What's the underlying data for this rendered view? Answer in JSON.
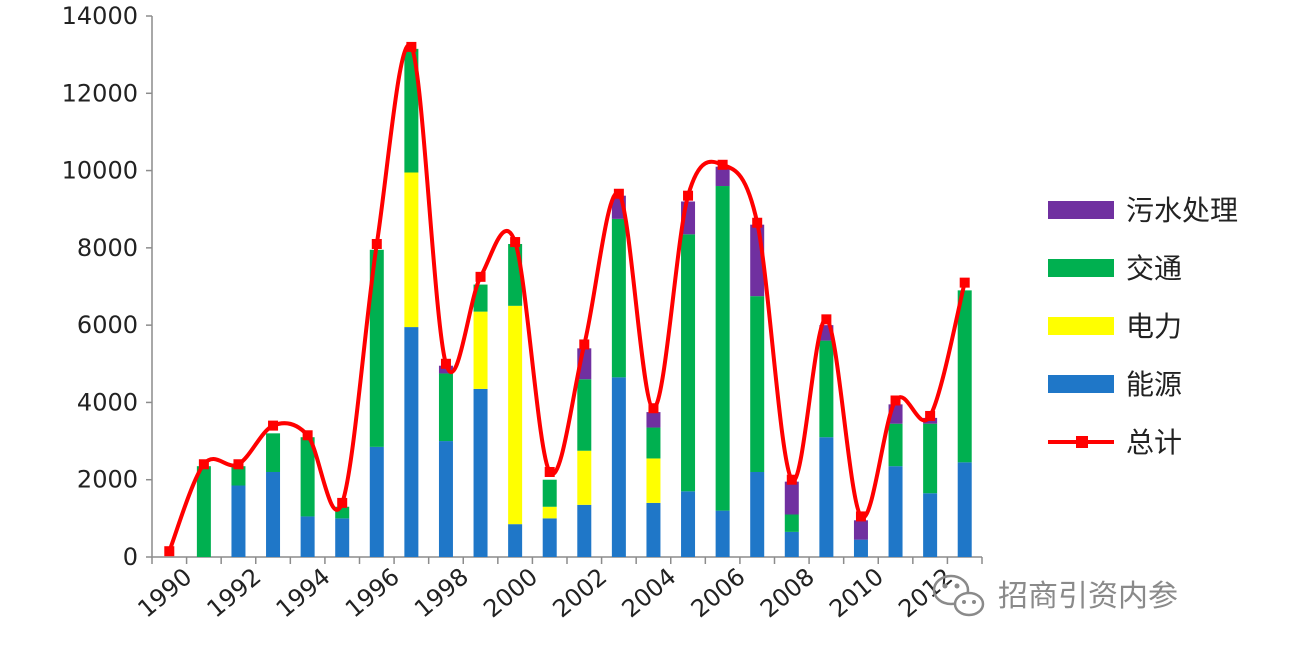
{
  "chart_data": {
    "type": "bar",
    "stacked": true,
    "title": "",
    "xlabel": "",
    "ylabel": "",
    "ylim": [
      0,
      14000
    ],
    "yticks": [
      0,
      2000,
      4000,
      6000,
      8000,
      10000,
      12000,
      14000
    ],
    "x_tick_labels": [
      "1990",
      "1992",
      "1994",
      "1996",
      "1998",
      "2000",
      "2002",
      "2004",
      "2006",
      "2008",
      "2010",
      "2012"
    ],
    "categories": [
      "1990",
      "1991",
      "1992",
      "1993",
      "1994",
      "1995",
      "1996",
      "1997",
      "1998",
      "1999",
      "2000",
      "2001",
      "2002",
      "2003",
      "2004",
      "2005",
      "2006",
      "2007",
      "2008",
      "2009",
      "2010",
      "2011",
      "2012",
      "2013"
    ],
    "series": [
      {
        "name": "能源",
        "color": "#1f77c8",
        "values": [
          0,
          0,
          1850,
          2200,
          1050,
          1000,
          2850,
          5950,
          3000,
          4350,
          850,
          1000,
          1350,
          4650,
          1400,
          1700,
          1200,
          2200,
          650,
          3100,
          450,
          2350,
          1650,
          2450
        ]
      },
      {
        "name": "电力",
        "color": "#ffff00",
        "values": [
          0,
          0,
          0,
          0,
          0,
          0,
          0,
          4000,
          0,
          2000,
          5650,
          300,
          1400,
          0,
          1150,
          0,
          0,
          0,
          0,
          0,
          0,
          0,
          0,
          0
        ]
      },
      {
        "name": "交通",
        "color": "#00b050",
        "values": [
          0,
          2350,
          500,
          1000,
          2050,
          300,
          5100,
          3200,
          1750,
          700,
          1600,
          700,
          1850,
          4100,
          800,
          6650,
          8400,
          4550,
          450,
          2500,
          0,
          1100,
          1800,
          4450
        ]
      },
      {
        "name": "污水处理",
        "color": "#7030a0",
        "values": [
          0,
          0,
          0,
          0,
          0,
          0,
          0,
          0,
          200,
          0,
          0,
          0,
          800,
          600,
          400,
          850,
          500,
          1850,
          850,
          400,
          500,
          500,
          150,
          0
        ]
      }
    ],
    "total": {
      "name": "总计",
      "color": "#ff0000",
      "values": [
        150,
        2400,
        2400,
        3400,
        3150,
        1400,
        8100,
        13200,
        5000,
        7250,
        8150,
        2200,
        5500,
        9400,
        3850,
        9350,
        10150,
        8650,
        2000,
        6150,
        1050,
        4050,
        3650,
        7100
      ]
    },
    "legend_position": "right",
    "grid": false
  },
  "watermark": {
    "text": "招商引资内参"
  }
}
